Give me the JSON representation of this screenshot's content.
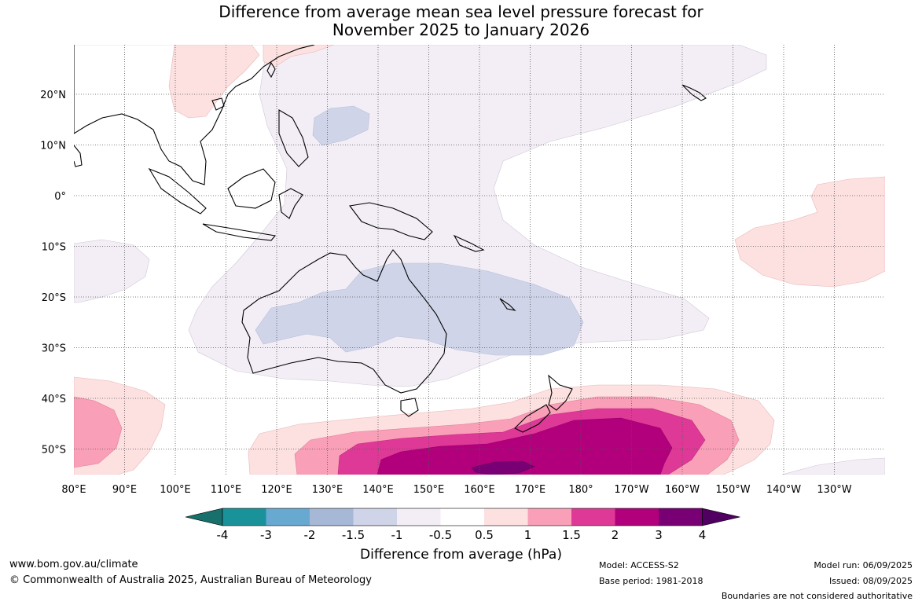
{
  "title_line1": "Difference from average mean sea level pressure forecast for",
  "title_line2": "November 2025 to January 2026",
  "lon_labels": [
    "80°E",
    "90°E",
    "100°E",
    "110°E",
    "120°E",
    "130°E",
    "140°E",
    "150°E",
    "160°E",
    "170°E",
    "180°",
    "170°W",
    "160°W",
    "150°W",
    "140°W",
    "130°W"
  ],
  "lat_labels": [
    "20°N",
    "10°N",
    "0°",
    "10°S",
    "20°S",
    "30°S",
    "40°S",
    "50°S"
  ],
  "colorbar": {
    "ticks": [
      "-4",
      "-3",
      "-2",
      "-1.5",
      "-1",
      "-0.5",
      "0.5",
      "1",
      "1.5",
      "2",
      "3",
      "4"
    ],
    "colors": [
      "#17706b",
      "#1a9299",
      "#68a9d2",
      "#a6b8d6",
      "#cfd4e8",
      "#f3eef6",
      "#ffffff",
      "#fde0e0",
      "#f99fb7",
      "#de3996",
      "#b2007c",
      "#790074",
      "#500060"
    ],
    "label": "Difference from average (hPa)"
  },
  "footer": {
    "website": "www.bom.gov.au/climate",
    "copyright": "© Commonwealth of Australia 2025, Australian Bureau of Meteorology",
    "model": "Model: ACCESS-S2",
    "base_period": "Base period: 1981-2018",
    "model_run": "Model run: 06/09/2025",
    "issued": "Issued: 08/09/2025",
    "disclaimer": "Boundaries are not considered authoritative"
  }
}
